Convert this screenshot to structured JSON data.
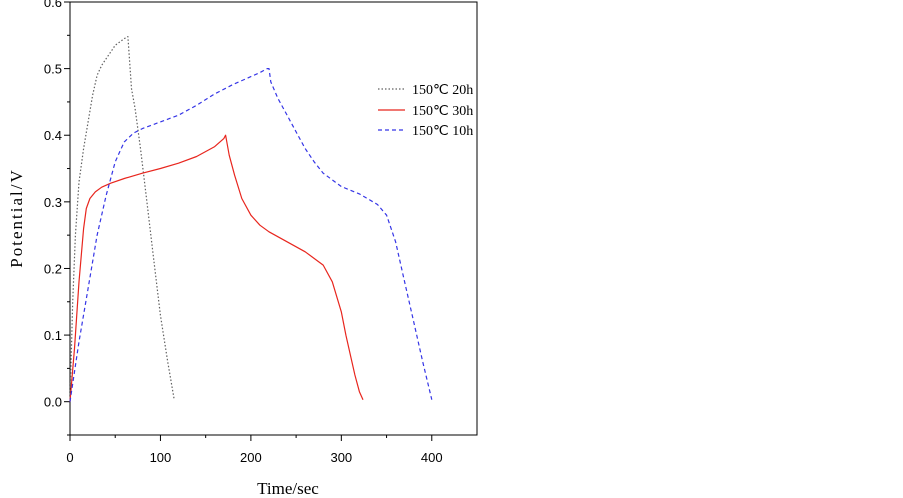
{
  "chart_data": {
    "type": "line",
    "xlabel": "Time/sec",
    "ylabel": "Potential/V",
    "xlim": [
      0,
      450
    ],
    "ylim": [
      -0.05,
      0.6
    ],
    "xticks": [
      0,
      100,
      200,
      300,
      400
    ],
    "yticks": [
      0.0,
      0.1,
      0.2,
      0.3,
      0.4,
      0.5,
      0.6
    ],
    "ytick_labels": [
      "0.0",
      "0.1",
      "0.2",
      "0.3",
      "0.4",
      "0.5",
      "0.6"
    ],
    "grid": false,
    "legend_position": "top-right",
    "series": [
      {
        "name": "150℃ 20h",
        "color": "#606060",
        "dash": "dotted",
        "x": [
          0,
          3,
          6,
          10,
          15,
          20,
          25,
          30,
          35,
          40,
          45,
          50,
          55,
          60,
          64,
          68,
          72,
          78,
          85,
          92,
          100,
          108,
          115
        ],
        "y": [
          0.0,
          0.15,
          0.25,
          0.33,
          0.38,
          0.42,
          0.46,
          0.49,
          0.505,
          0.515,
          0.525,
          0.535,
          0.54,
          0.545,
          0.548,
          0.47,
          0.44,
          0.38,
          0.3,
          0.22,
          0.13,
          0.06,
          0.005
        ]
      },
      {
        "name": "150℃ 30h",
        "color": "#e8261e",
        "dash": "solid",
        "x": [
          0,
          5,
          10,
          15,
          18,
          22,
          28,
          35,
          45,
          60,
          80,
          100,
          120,
          140,
          160,
          170,
          172,
          176,
          182,
          190,
          200,
          210,
          220,
          240,
          260,
          280,
          290,
          300,
          305,
          310,
          315,
          320,
          324
        ],
        "y": [
          0.0,
          0.08,
          0.18,
          0.26,
          0.29,
          0.305,
          0.315,
          0.322,
          0.328,
          0.335,
          0.343,
          0.35,
          0.358,
          0.368,
          0.383,
          0.395,
          0.4,
          0.37,
          0.34,
          0.305,
          0.28,
          0.265,
          0.255,
          0.24,
          0.225,
          0.205,
          0.18,
          0.135,
          0.1,
          0.07,
          0.04,
          0.015,
          0.003
        ]
      },
      {
        "name": "150℃ 10h",
        "color": "#3535e6",
        "dash": "dashed",
        "x": [
          0,
          10,
          20,
          30,
          40,
          50,
          55,
          60,
          70,
          80,
          100,
          120,
          140,
          160,
          180,
          200,
          210,
          218,
          220,
          222,
          230,
          240,
          250,
          260,
          270,
          280,
          290,
          300,
          320,
          340,
          350,
          360,
          370,
          380,
          390,
          400
        ],
        "y": [
          0.0,
          0.09,
          0.17,
          0.25,
          0.31,
          0.36,
          0.375,
          0.39,
          0.403,
          0.41,
          0.42,
          0.43,
          0.445,
          0.462,
          0.476,
          0.488,
          0.494,
          0.5,
          0.5,
          0.48,
          0.455,
          0.43,
          0.405,
          0.38,
          0.36,
          0.343,
          0.333,
          0.323,
          0.312,
          0.296,
          0.28,
          0.24,
          0.18,
          0.12,
          0.06,
          0.003
        ]
      }
    ]
  }
}
